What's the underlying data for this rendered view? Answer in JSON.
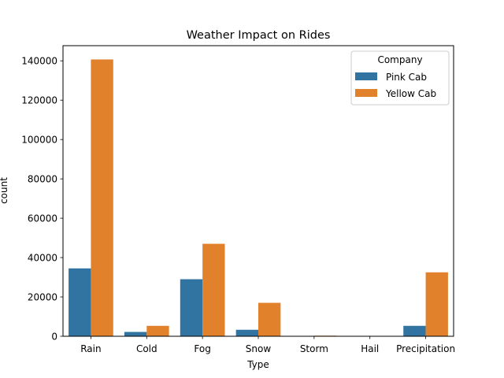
{
  "chart_data": {
    "type": "bar",
    "title": "Weather Impact on Rides",
    "xlabel": "Type",
    "ylabel": "count",
    "categories": [
      "Rain",
      "Cold",
      "Fog",
      "Snow",
      "Storm",
      "Hail",
      "Precipitation"
    ],
    "series": [
      {
        "name": "Pink Cab",
        "color": "#3274a1",
        "values": [
          34500,
          2200,
          29000,
          3300,
          0,
          0,
          5300
        ]
      },
      {
        "name": "Yellow Cab",
        "color": "#e1812c",
        "values": [
          140700,
          5300,
          47000,
          17000,
          300,
          0,
          32500
        ]
      }
    ],
    "ylim": [
      0,
      147700
    ],
    "yticks": [
      0,
      20000,
      40000,
      60000,
      80000,
      100000,
      120000,
      140000
    ],
    "ytick_labels": [
      "0",
      "20000",
      "40000",
      "60000",
      "80000",
      "100000",
      "120000",
      "140000"
    ],
    "legend": {
      "title": "Company",
      "placement": "upper-right"
    },
    "grid": false
  }
}
